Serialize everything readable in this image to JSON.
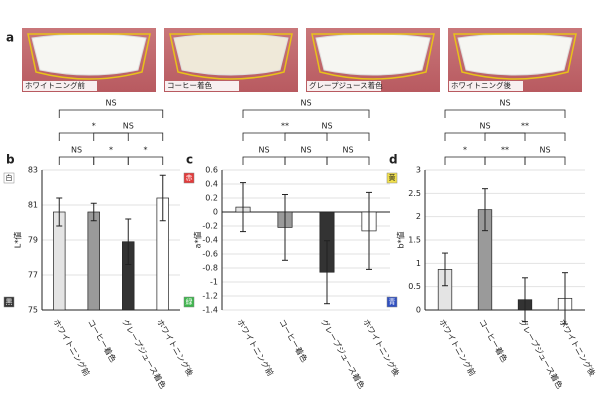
{
  "figure_a": {
    "label": "a",
    "captions": [
      "ホワイトニング前",
      "コーヒー着色",
      "グレープジュース着色",
      "ホワイトニング後"
    ]
  },
  "chart_data": [
    {
      "type": "bar",
      "label": "b",
      "ylabel": "L*値",
      "categories": [
        "ホワイトニング前",
        "コーヒー着色",
        "グレープジュース着色",
        "ホワイトニング後"
      ],
      "values": [
        80.6,
        80.6,
        78.9,
        81.4
      ],
      "errors": [
        0.8,
        0.5,
        1.3,
        1.3
      ],
      "colors": [
        "#e4e4e4",
        "#9a9a9a",
        "#333333",
        "#ffffff"
      ],
      "ylim": [
        75,
        83
      ],
      "yticks": [
        75,
        77,
        79,
        81,
        83
      ],
      "grid": true,
      "top_marker": {
        "text": "白",
        "color": "#ffffff"
      },
      "bottom_marker": {
        "text": "黒",
        "color": "#333333"
      },
      "significance": [
        {
          "bars": [
            0,
            3
          ],
          "label": "NS"
        },
        {
          "bars": [
            1,
            3
          ],
          "label": "NS"
        },
        {
          "bars": [
            0,
            2
          ],
          "label": "*"
        },
        {
          "bars": [
            0,
            1
          ],
          "label": "NS"
        },
        {
          "bars": [
            1,
            2
          ],
          "label": "*"
        },
        {
          "bars": [
            2,
            3
          ],
          "label": "*"
        }
      ]
    },
    {
      "type": "bar",
      "label": "c",
      "ylabel": "a*値",
      "categories": [
        "ホワイトニング前",
        "コーヒー着色",
        "グレープジュース着色",
        "ホワイトニング後"
      ],
      "values": [
        0.07,
        -0.22,
        -0.86,
        -0.27
      ],
      "errors": [
        0.35,
        0.47,
        0.45,
        0.55
      ],
      "colors": [
        "#e4e4e4",
        "#9a9a9a",
        "#333333",
        "#ffffff"
      ],
      "ylim": [
        -1.4,
        0.6
      ],
      "yticks": [
        0.6,
        0.4,
        0.2,
        0,
        -0.2,
        -0.4,
        -0.6,
        -0.8,
        -1,
        -1.2,
        -1.4
      ],
      "grid": true,
      "top_marker": {
        "text": "赤",
        "color": "#e23b3b"
      },
      "bottom_marker": {
        "text": "緑",
        "color": "#3bb54a"
      },
      "significance": [
        {
          "bars": [
            0,
            3
          ],
          "label": "NS"
        },
        {
          "bars": [
            1,
            3
          ],
          "label": "NS"
        },
        {
          "bars": [
            0,
            2
          ],
          "label": "**"
        },
        {
          "bars": [
            0,
            1
          ],
          "label": "NS"
        },
        {
          "bars": [
            1,
            2
          ],
          "label": "NS"
        },
        {
          "bars": [
            2,
            3
          ],
          "label": "NS"
        }
      ]
    },
    {
      "type": "bar",
      "label": "d",
      "ylabel": "b*値",
      "categories": [
        "ホワイトニング前",
        "コーヒー着色",
        "グレープジュース着色",
        "ホワイトニング後"
      ],
      "values": [
        0.87,
        2.15,
        0.22,
        0.25
      ],
      "errors": [
        0.35,
        0.45,
        0.47,
        0.55
      ],
      "colors": [
        "#e4e4e4",
        "#9a9a9a",
        "#333333",
        "#ffffff"
      ],
      "ylim": [
        0,
        3
      ],
      "yticks": [
        0,
        0.5,
        1,
        1.5,
        2,
        2.5,
        3
      ],
      "grid": true,
      "top_marker": {
        "text": "黄",
        "color": "#f2e14c"
      },
      "bottom_marker": {
        "text": "青",
        "color": "#3050c0"
      },
      "significance": [
        {
          "bars": [
            0,
            3
          ],
          "label": "NS"
        },
        {
          "bars": [
            1,
            3
          ],
          "label": "**"
        },
        {
          "bars": [
            0,
            2
          ],
          "label": "NS"
        },
        {
          "bars": [
            0,
            1
          ],
          "label": "*"
        },
        {
          "bars": [
            1,
            2
          ],
          "label": "**"
        },
        {
          "bars": [
            2,
            3
          ],
          "label": "NS"
        }
      ]
    }
  ]
}
